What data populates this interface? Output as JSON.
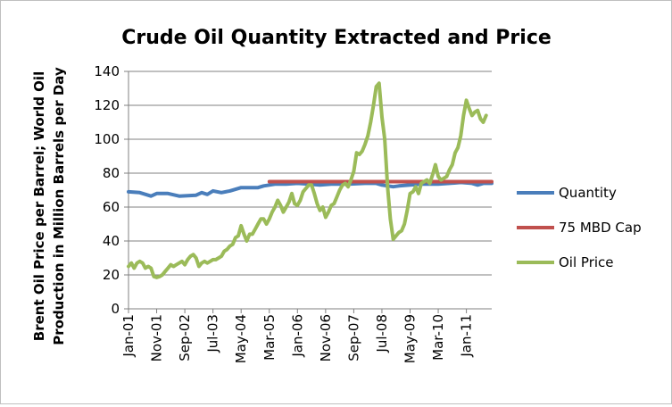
{
  "chart_data": {
    "type": "line",
    "title": "Crude Oil Quantity Extracted and Price",
    "ylabel_lines": [
      "Brent Oil Price per Barrel; World Oil",
      "Production in Million Barrels per Day"
    ],
    "xlabel": "",
    "ylim": [
      0,
      140
    ],
    "yticks": [
      0,
      20,
      40,
      60,
      80,
      100,
      120,
      140
    ],
    "x_tick_labels": [
      "Jan-01",
      "Nov-01",
      "Sep-02",
      "Jul-03",
      "May-04",
      "Mar-05",
      "Jan-06",
      "Nov-06",
      "Sep-07",
      "Jul-08",
      "May-09",
      "Mar-10",
      "Jan-11"
    ],
    "x_start": "Jan-01",
    "x_end": "Sep-11",
    "months": 129,
    "grid": "horizontal",
    "legend_position": "right",
    "series": [
      {
        "name": "Quantity",
        "color": "#4a7ebb",
        "points": [
          [
            0,
            69
          ],
          [
            4,
            68.5
          ],
          [
            8,
            66.5
          ],
          [
            10,
            68
          ],
          [
            14,
            68
          ],
          [
            18,
            66.5
          ],
          [
            24,
            67
          ],
          [
            26,
            68.5
          ],
          [
            28,
            67.5
          ],
          [
            30,
            69.5
          ],
          [
            33,
            68.5
          ],
          [
            36,
            69.5
          ],
          [
            40,
            71.5
          ],
          [
            44,
            71.5
          ],
          [
            46,
            71.5
          ],
          [
            48,
            72.5
          ],
          [
            52,
            73.5
          ],
          [
            56,
            73.5
          ],
          [
            60,
            74
          ],
          [
            64,
            73.5
          ],
          [
            68,
            73
          ],
          [
            72,
            73.5
          ],
          [
            78,
            73.5
          ],
          [
            84,
            74
          ],
          [
            88,
            74
          ],
          [
            90,
            73
          ],
          [
            94,
            72
          ],
          [
            96,
            72.5
          ],
          [
            100,
            73
          ],
          [
            104,
            73.5
          ],
          [
            110,
            73.5
          ],
          [
            114,
            74
          ],
          [
            118,
            74.5
          ],
          [
            122,
            74
          ],
          [
            124,
            73
          ],
          [
            126,
            74
          ],
          [
            129,
            74
          ]
        ]
      },
      {
        "name": "75 MBD Cap",
        "color": "#c0504d",
        "points": [
          [
            50,
            75
          ],
          [
            129,
            75
          ]
        ]
      },
      {
        "name": "Oil Price",
        "color": "#9bbb59",
        "points": [
          [
            0,
            25
          ],
          [
            1,
            27
          ],
          [
            2,
            24
          ],
          [
            3,
            27
          ],
          [
            4,
            28
          ],
          [
            5,
            27
          ],
          [
            6,
            24
          ],
          [
            7,
            25
          ],
          [
            8,
            24
          ],
          [
            9,
            19
          ],
          [
            10,
            18.5
          ],
          [
            11,
            19
          ],
          [
            12,
            20
          ],
          [
            13,
            22
          ],
          [
            14,
            24
          ],
          [
            15,
            26
          ],
          [
            16,
            25
          ],
          [
            17,
            26
          ],
          [
            18,
            27
          ],
          [
            19,
            28
          ],
          [
            20,
            26
          ],
          [
            21,
            29
          ],
          [
            22,
            31
          ],
          [
            23,
            32
          ],
          [
            24,
            30
          ],
          [
            25,
            25
          ],
          [
            26,
            27
          ],
          [
            27,
            28
          ],
          [
            28,
            27
          ],
          [
            29,
            28
          ],
          [
            30,
            29
          ],
          [
            31,
            29
          ],
          [
            32,
            30
          ],
          [
            33,
            31
          ],
          [
            34,
            34
          ],
          [
            35,
            35
          ],
          [
            36,
            37
          ],
          [
            37,
            38
          ],
          [
            38,
            42
          ],
          [
            39,
            43
          ],
          [
            40,
            49
          ],
          [
            41,
            44
          ],
          [
            42,
            40
          ],
          [
            43,
            44
          ],
          [
            44,
            44
          ],
          [
            45,
            47
          ],
          [
            46,
            50
          ],
          [
            47,
            53
          ],
          [
            48,
            53
          ],
          [
            49,
            50
          ],
          [
            50,
            53
          ],
          [
            51,
            57
          ],
          [
            52,
            60
          ],
          [
            53,
            64
          ],
          [
            54,
            61
          ],
          [
            55,
            57
          ],
          [
            56,
            60
          ],
          [
            57,
            63
          ],
          [
            58,
            68
          ],
          [
            59,
            62
          ],
          [
            60,
            61
          ],
          [
            61,
            64
          ],
          [
            62,
            69
          ],
          [
            63,
            71
          ],
          [
            64,
            73
          ],
          [
            65,
            73
          ],
          [
            66,
            68
          ],
          [
            67,
            62
          ],
          [
            68,
            58
          ],
          [
            69,
            60
          ],
          [
            70,
            54
          ],
          [
            71,
            57
          ],
          [
            72,
            61
          ],
          [
            73,
            62
          ],
          [
            74,
            66
          ],
          [
            75,
            70
          ],
          [
            76,
            73
          ],
          [
            77,
            74
          ],
          [
            78,
            72
          ],
          [
            79,
            76
          ],
          [
            80,
            81
          ],
          [
            81,
            92
          ],
          [
            82,
            91
          ],
          [
            83,
            93
          ],
          [
            84,
            97
          ],
          [
            85,
            102
          ],
          [
            86,
            110
          ],
          [
            87,
            120
          ],
          [
            88,
            131
          ],
          [
            89,
            133
          ],
          [
            90,
            113
          ],
          [
            91,
            100
          ],
          [
            92,
            72
          ],
          [
            93,
            53
          ],
          [
            94,
            41
          ],
          [
            95,
            43
          ],
          [
            96,
            45
          ],
          [
            97,
            46
          ],
          [
            98,
            50
          ],
          [
            99,
            58
          ],
          [
            100,
            68
          ],
          [
            101,
            69
          ],
          [
            102,
            72
          ],
          [
            103,
            68
          ],
          [
            104,
            74
          ],
          [
            105,
            75
          ],
          [
            106,
            76
          ],
          [
            107,
            74
          ],
          [
            108,
            79
          ],
          [
            109,
            85
          ],
          [
            110,
            78
          ],
          [
            111,
            76
          ],
          [
            112,
            77
          ],
          [
            113,
            78
          ],
          [
            114,
            82
          ],
          [
            115,
            85
          ],
          [
            116,
            92
          ],
          [
            117,
            95
          ],
          [
            118,
            102
          ],
          [
            119,
            114
          ],
          [
            120,
            123
          ],
          [
            121,
            118
          ],
          [
            122,
            114
          ],
          [
            123,
            116
          ],
          [
            124,
            117
          ],
          [
            125,
            112
          ],
          [
            126,
            110
          ],
          [
            127,
            114
          ]
        ]
      }
    ]
  },
  "colors": {
    "gridline": "#808080",
    "axis": "#808080"
  }
}
